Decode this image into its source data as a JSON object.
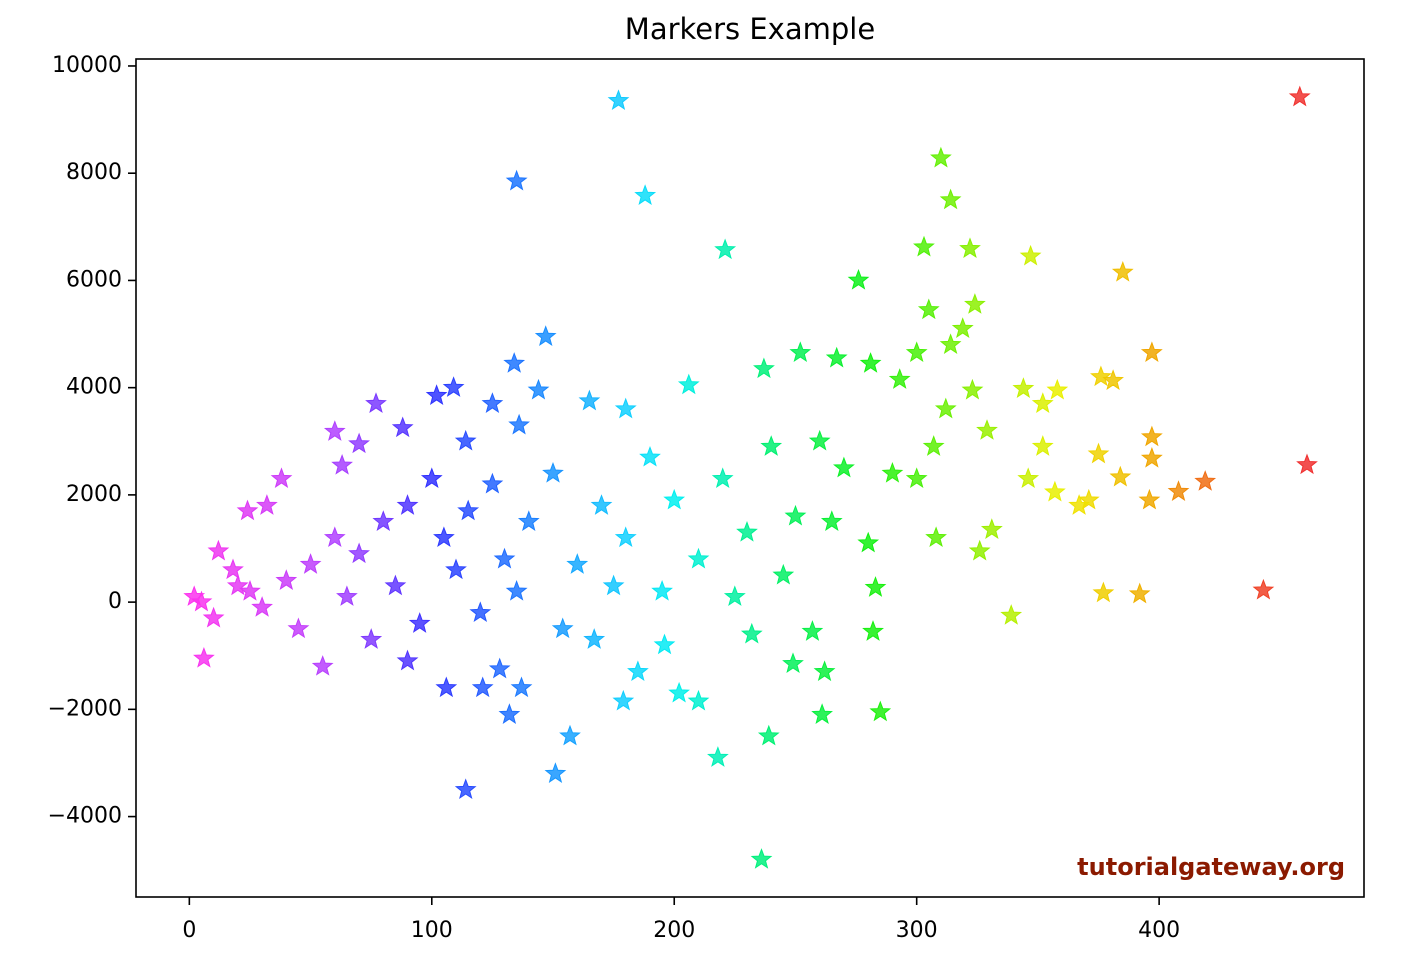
{
  "chart_data": {
    "type": "scatter",
    "title": "Markers Example",
    "watermark": "tutorialgateway.org",
    "marker": "star",
    "colorscale": [
      [
        0,
        "#ff33ee"
      ],
      [
        60,
        "#b040ff"
      ],
      [
        100,
        "#3030ff"
      ],
      [
        140,
        "#1a80ff"
      ],
      [
        180,
        "#10d0ff"
      ],
      [
        200,
        "#00f0f0"
      ],
      [
        240,
        "#00f070"
      ],
      [
        280,
        "#10f010"
      ],
      [
        320,
        "#80f000"
      ],
      [
        360,
        "#f0f000"
      ],
      [
        400,
        "#f0a000"
      ],
      [
        430,
        "#f05020"
      ],
      [
        460,
        "#f03030"
      ]
    ],
    "xlim": [
      -22,
      484.5
    ],
    "ylim": [
      -5500,
      10130
    ],
    "xticks": [
      0,
      100,
      200,
      300,
      400
    ],
    "yticks": [
      {
        "value": -4000,
        "label": "−4000"
      },
      {
        "value": -2000,
        "label": "−2000"
      },
      0,
      2000,
      4000,
      6000,
      8000,
      10000
    ],
    "x": [
      177,
      135,
      188,
      221,
      458,
      461,
      443,
      310,
      314,
      322,
      303,
      347,
      385,
      276,
      397,
      147,
      134,
      144,
      109,
      102,
      77,
      60,
      376,
      381,
      344,
      358,
      352,
      397,
      397,
      419,
      408,
      396,
      384,
      375,
      371,
      367,
      357,
      352,
      346,
      377,
      392,
      339,
      285,
      282,
      283,
      261,
      262,
      249,
      239,
      236,
      218,
      210,
      202,
      179,
      151,
      157,
      137,
      132,
      114,
      106,
      121,
      128,
      55,
      6,
      38,
      24,
      32,
      63,
      70,
      88,
      114,
      125,
      136,
      165,
      180,
      206,
      237,
      252,
      267,
      281,
      293,
      305,
      319,
      324,
      314,
      323,
      312,
      329,
      300,
      307,
      331,
      326,
      308,
      257,
      232,
      196,
      185,
      167,
      154,
      90,
      75,
      12,
      18,
      25,
      40,
      50,
      60,
      70,
      80,
      90,
      100,
      105,
      110,
      115,
      120,
      125,
      130,
      140,
      150,
      160,
      170,
      180,
      190,
      200,
      210,
      220,
      230,
      240,
      250,
      260,
      270,
      280,
      290,
      300,
      265,
      245,
      225,
      5,
      2,
      10,
      20,
      30,
      45,
      65,
      85,
      95,
      135,
      175,
      195
    ],
    "values": [
      9350,
      7850,
      7580,
      6570,
      9420,
      2560,
      220,
      8280,
      7500,
      6590,
      6620,
      6450,
      6150,
      6000,
      4650,
      4950,
      4450,
      3950,
      4000,
      3850,
      3700,
      3180,
      4200,
      4130,
      3980,
      3950,
      3700,
      3080,
      2680,
      2250,
      2060,
      1900,
      2330,
      2760,
      1900,
      1800,
      2050,
      2900,
      2300,
      170,
      150,
      -250,
      -2050,
      -550,
      270,
      -2100,
      -1300,
      -1150,
      -2500,
      -4800,
      -2900,
      -1850,
      -1700,
      -1850,
      -3200,
      -2500,
      -1600,
      -2100,
      -3500,
      -1600,
      -1600,
      -1250,
      -1200,
      -1050,
      2300,
      1700,
      1800,
      2550,
      2950,
      3250,
      3000,
      3700,
      3300,
      3750,
      3600,
      4050,
      4350,
      4650,
      4550,
      4450,
      4150,
      5450,
      5100,
      5550,
      4800,
      3950,
      3600,
      3200,
      4650,
      2900,
      1350,
      950,
      1200,
      -550,
      -600,
      -800,
      -1300,
      -700,
      -500,
      -1100,
      -700,
      950,
      600,
      200,
      400,
      700,
      1200,
      900,
      1500,
      1800,
      2300,
      1200,
      600,
      1700,
      -200,
      2200,
      800,
      1500,
      2400,
      700,
      1800,
      1200,
      2700,
      1900,
      800,
      2300,
      1300,
      2900,
      1600,
      3000,
      2500,
      1100,
      2400,
      2300,
      1500,
      500,
      100,
      0,
      100,
      -300,
      300,
      -100,
      -500,
      100,
      300,
      -400,
      200,
      300,
      200
    ]
  }
}
